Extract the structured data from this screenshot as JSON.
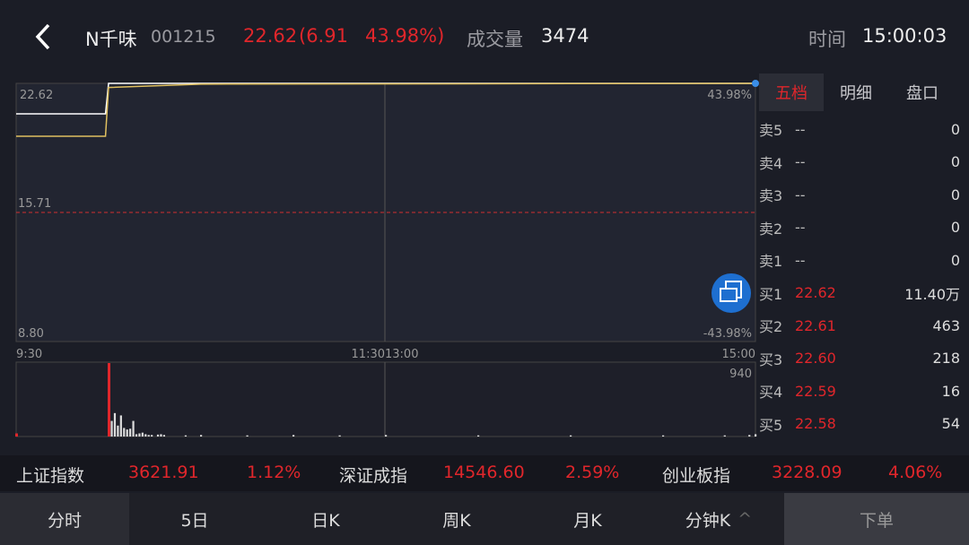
{
  "header": {
    "back_icon": "chevron-left-icon",
    "name": "N千味",
    "code": "001215",
    "price": "22.62",
    "change": "(6.91",
    "change_pct": "43.98%)",
    "volume_label": "成交量",
    "volume": "3474",
    "time_label": "时间",
    "time": "15:00:03"
  },
  "chart": {
    "price_high": "22.62",
    "price_mid": "15.71",
    "price_low": "8.80",
    "pct_high": "43.98%",
    "pct_low": "-43.98%",
    "times": [
      "9:30",
      "11:3013:00",
      "15:00"
    ],
    "vol_max": "940",
    "switch_icon": "rotate-screen-icon"
  },
  "chart_data": [
    {
      "type": "line",
      "ylim": [
        8.8,
        22.62
      ],
      "reference": 15.71,
      "series": [
        {
          "color": "#ffffff",
          "points": [
            [
              "9:30",
              20.99
            ],
            [
              "9:59",
              20.99
            ],
            [
              "10:00",
              22.62
            ],
            [
              "15:00",
              22.62
            ]
          ]
        },
        {
          "color": "#e0c060",
          "points": [
            [
              "9:30",
              19.79
            ],
            [
              "9:59",
              19.79
            ],
            [
              "10:00",
              22.4
            ],
            [
              "10:30",
              22.58
            ],
            [
              "15:00",
              22.62
            ]
          ]
        }
      ]
    },
    {
      "type": "bar",
      "ylim": [
        0,
        940
      ],
      "bars": [
        [
          "9:30",
          40,
          "red"
        ],
        [
          "10:00",
          940,
          "red"
        ],
        [
          "10:01",
          200
        ],
        [
          "10:02",
          300
        ],
        [
          "10:03",
          140
        ],
        [
          "10:04",
          270
        ],
        [
          "10:05",
          110
        ],
        [
          "10:06",
          90
        ],
        [
          "10:07",
          100
        ],
        [
          "10:08",
          200
        ],
        [
          "10:09",
          30
        ],
        [
          "10:10",
          40
        ],
        [
          "10:11",
          50
        ],
        [
          "10:12",
          30
        ],
        [
          "10:13",
          20
        ],
        [
          "10:14",
          20
        ],
        [
          "10:16",
          25
        ],
        [
          "10:17",
          30
        ],
        [
          "10:18",
          20
        ],
        [
          "10:25",
          15
        ],
        [
          "10:30",
          20
        ],
        [
          "10:45",
          15
        ],
        [
          "11:00",
          20
        ],
        [
          "11:15",
          15
        ],
        [
          "13:00",
          20
        ],
        [
          "13:30",
          15
        ],
        [
          "14:00",
          15
        ],
        [
          "14:30",
          15
        ],
        [
          "14:50",
          15
        ],
        [
          "14:58",
          20
        ],
        [
          "15:00",
          30
        ]
      ]
    }
  ],
  "tabs": [
    {
      "label": "五档",
      "active": true
    },
    {
      "label": "明细"
    },
    {
      "label": "盘口"
    }
  ],
  "book": [
    {
      "label": "卖5",
      "price": "--",
      "vol": "0"
    },
    {
      "label": "卖4",
      "price": "--",
      "vol": "0"
    },
    {
      "label": "卖3",
      "price": "--",
      "vol": "0"
    },
    {
      "label": "卖2",
      "price": "--",
      "vol": "0"
    },
    {
      "label": "卖1",
      "price": "--",
      "vol": "0"
    },
    {
      "label": "买1",
      "price": "22.62",
      "vol": "11.40万"
    },
    {
      "label": "买2",
      "price": "22.61",
      "vol": "463"
    },
    {
      "label": "买3",
      "price": "22.60",
      "vol": "218"
    },
    {
      "label": "买4",
      "price": "22.59",
      "vol": "16"
    },
    {
      "label": "买5",
      "price": "22.58",
      "vol": "54"
    }
  ],
  "indices": [
    {
      "name": "上证指数",
      "value": "3621.91",
      "pct": "1.12%"
    },
    {
      "name": "深证成指",
      "value": "14546.60",
      "pct": "2.59%"
    },
    {
      "name": "创业板指",
      "value": "3228.09",
      "pct": "4.06%"
    }
  ],
  "bottom_tabs": [
    "分时",
    "5日",
    "日K",
    "周K",
    "月K",
    "分钟K"
  ],
  "order_button": "下单",
  "colors": {
    "up": "#e0262b",
    "accent": "#1e6fd0"
  }
}
